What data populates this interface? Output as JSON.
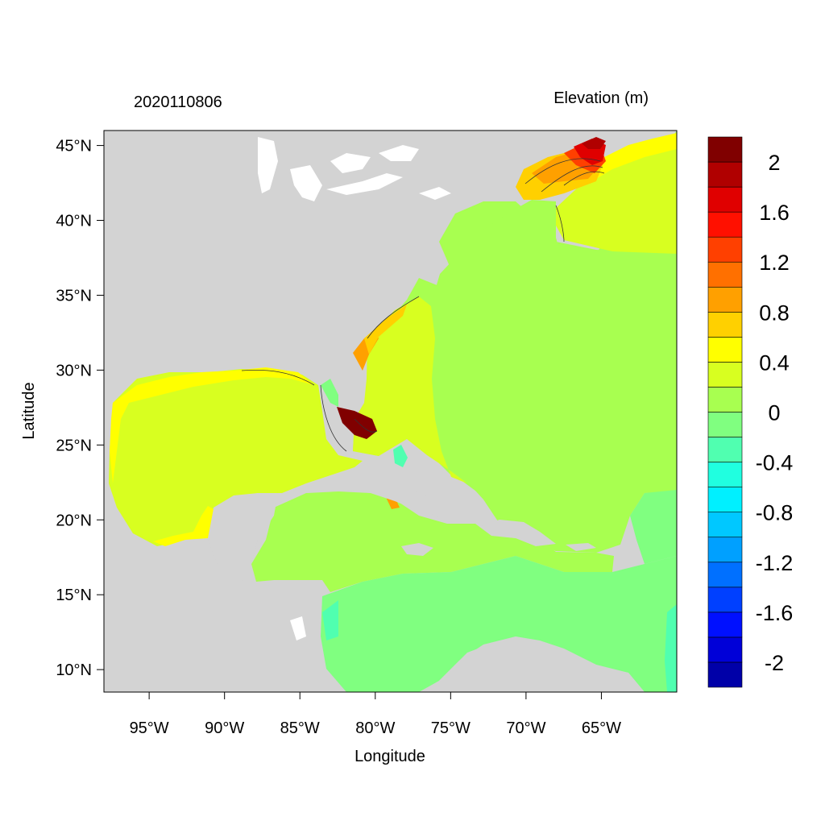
{
  "map": {
    "date_label": "2020110806",
    "variable_label": "Elevation (m)",
    "xlabel": "Longitude",
    "ylabel": "Latitude",
    "lon_range": [
      -98.0,
      -60.0
    ],
    "lat_range": [
      8.5,
      46.0
    ],
    "lon_ticks": [
      {
        "value": -95,
        "label": "95°W"
      },
      {
        "value": -90,
        "label": "90°W"
      },
      {
        "value": -85,
        "label": "85°W"
      },
      {
        "value": -80,
        "label": "80°W"
      },
      {
        "value": -75,
        "label": "75°W"
      },
      {
        "value": -70,
        "label": "70°W"
      },
      {
        "value": -65,
        "label": "65°W"
      }
    ],
    "lat_ticks": [
      {
        "value": 45,
        "label": "45°N"
      },
      {
        "value": 40,
        "label": "40°N"
      },
      {
        "value": 35,
        "label": "35°N"
      },
      {
        "value": 30,
        "label": "30°N"
      },
      {
        "value": 25,
        "label": "25°N"
      },
      {
        "value": 20,
        "label": "20°N"
      },
      {
        "value": 15,
        "label": "15°N"
      },
      {
        "value": 10,
        "label": "10°N"
      }
    ],
    "land_color": "#d3d3d3",
    "inland_water_color": "#ffffff"
  },
  "colorbar": {
    "levels": [
      -2.2,
      -2.0,
      -1.8,
      -1.6,
      -1.4,
      -1.2,
      -1.0,
      -0.8,
      -0.6,
      -0.4,
      -0.2,
      0.0,
      0.2,
      0.4,
      0.6,
      0.8,
      1.0,
      1.2,
      1.4,
      1.6,
      1.8,
      2.0,
      2.2
    ],
    "colors": [
      "#0000a8",
      "#0000d8",
      "#0010ff",
      "#0040ff",
      "#0070ff",
      "#00a0ff",
      "#00c8ff",
      "#00f0ff",
      "#20ffe0",
      "#50ffb0",
      "#80ff80",
      "#a8ff50",
      "#d8ff20",
      "#ffff00",
      "#ffd000",
      "#ffa000",
      "#ff7000",
      "#ff4000",
      "#ff1000",
      "#e00000",
      "#b00000",
      "#800000"
    ],
    "labels": [
      {
        "value": 2.0,
        "text": "2"
      },
      {
        "value": 1.6,
        "text": "1.6"
      },
      {
        "value": 1.2,
        "text": "1.2"
      },
      {
        "value": 0.8,
        "text": "0.8"
      },
      {
        "value": 0.4,
        "text": "0.4"
      },
      {
        "value": 0.0,
        "text": "0"
      },
      {
        "value": -0.4,
        "text": "-0.4"
      },
      {
        "value": -0.8,
        "text": "-0.8"
      },
      {
        "value": -1.2,
        "text": "-1.2"
      },
      {
        "value": -1.6,
        "text": "-1.6"
      },
      {
        "value": -2.0,
        "text": "-2"
      }
    ]
  }
}
